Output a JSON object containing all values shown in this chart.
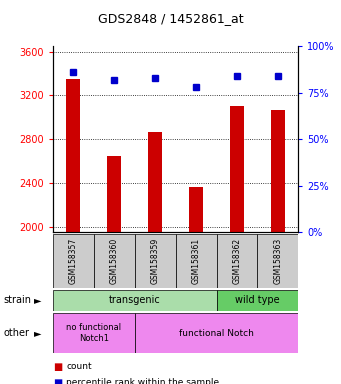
{
  "title": "GDS2848 / 1452861_at",
  "samples": [
    "GSM158357",
    "GSM158360",
    "GSM158359",
    "GSM158361",
    "GSM158362",
    "GSM158363"
  ],
  "counts": [
    3350,
    2650,
    2870,
    2360,
    3100,
    3070
  ],
  "percentiles": [
    86,
    82,
    83,
    78,
    84,
    84
  ],
  "ylim_left": [
    1950,
    3650
  ],
  "ylim_right": [
    0,
    100
  ],
  "yticks_left": [
    2000,
    2400,
    2800,
    3200,
    3600
  ],
  "yticks_right": [
    0,
    25,
    50,
    75,
    100
  ],
  "bar_color": "#cc0000",
  "dot_color": "#0000cc",
  "bar_width": 0.35,
  "strain_transgenic_color": "#aaddaa",
  "strain_wildtype_color": "#66cc66",
  "other_color": "#ee88ee",
  "tick_box_color": "#cccccc",
  "fig_width": 3.41,
  "fig_height": 3.84,
  "dpi": 100
}
